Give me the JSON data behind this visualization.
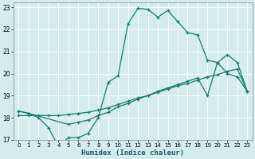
{
  "xlabel": "Humidex (Indice chaleur)",
  "bg_color": "#d4ecee",
  "grid_color": "#ffffff",
  "line_color": "#1a7a6e",
  "xlim": [
    -0.5,
    23.5
  ],
  "ylim": [
    17.0,
    23.2
  ],
  "xtick_labels": [
    "0",
    "1",
    "2",
    "3",
    "4",
    "5",
    "6",
    "7",
    "8",
    "9",
    "10",
    "11",
    "12",
    "13",
    "14",
    "15",
    "16",
    "17",
    "18",
    "19",
    "20",
    "21",
    "22",
    "23"
  ],
  "xtick_vals": [
    0,
    1,
    2,
    3,
    4,
    5,
    6,
    7,
    8,
    9,
    10,
    11,
    12,
    13,
    14,
    15,
    16,
    17,
    18,
    19,
    20,
    21,
    22,
    23
  ],
  "ytick_vals": [
    17,
    18,
    19,
    20,
    21,
    22,
    23
  ],
  "line1_x": [
    0,
    1,
    2,
    3,
    4,
    5,
    6,
    7,
    8,
    9,
    10,
    11,
    12,
    13,
    14,
    15,
    16,
    17,
    18,
    19,
    20,
    21,
    22,
    23
  ],
  "line1_y": [
    18.3,
    18.2,
    18.0,
    17.55,
    16.7,
    17.1,
    17.1,
    17.3,
    18.0,
    19.6,
    19.9,
    22.25,
    22.95,
    22.9,
    22.55,
    22.85,
    22.35,
    21.85,
    21.75,
    20.6,
    20.5,
    20.0,
    19.85,
    19.2
  ],
  "line2_x": [
    0,
    1,
    5,
    6,
    7,
    8,
    9,
    10,
    11,
    12,
    13,
    14,
    15,
    16,
    17,
    18,
    19,
    20,
    21,
    22,
    23
  ],
  "line2_y": [
    18.3,
    18.2,
    17.7,
    17.8,
    17.9,
    18.1,
    18.25,
    18.5,
    18.65,
    18.85,
    19.0,
    19.2,
    19.35,
    19.5,
    19.65,
    19.8,
    19.0,
    20.5,
    20.85,
    20.5,
    19.2
  ],
  "line3_x": [
    0,
    1,
    2,
    3,
    4,
    5,
    6,
    7,
    8,
    9,
    10,
    11,
    12,
    13,
    14,
    15,
    16,
    17,
    18,
    19,
    20,
    21,
    22,
    23
  ],
  "line3_y": [
    18.1,
    18.1,
    18.1,
    18.1,
    18.1,
    18.15,
    18.2,
    18.25,
    18.35,
    18.45,
    18.6,
    18.75,
    18.9,
    19.0,
    19.15,
    19.3,
    19.45,
    19.55,
    19.7,
    19.85,
    19.95,
    20.1,
    20.2,
    19.2
  ]
}
